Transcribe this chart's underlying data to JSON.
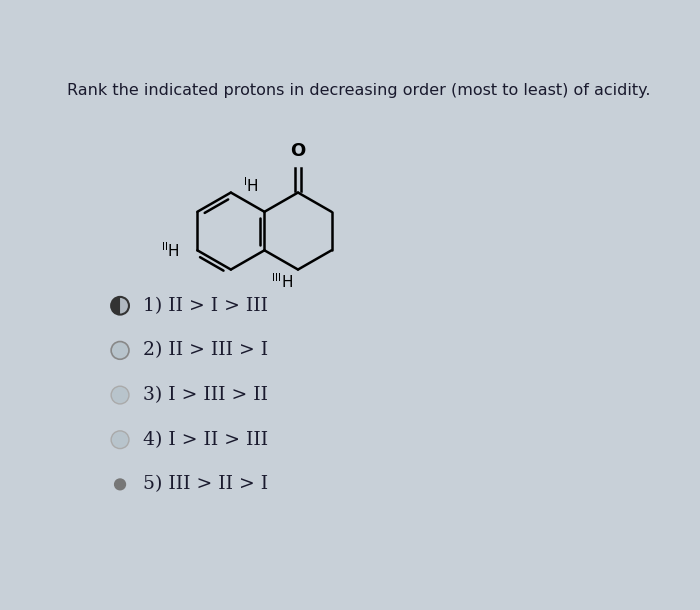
{
  "title": "Rank the indicated protons in decreasing order (most to least) of acidity.",
  "title_fontsize": 11.5,
  "bg_color": "#c8d0d8",
  "options": [
    "1) II > I > III",
    "2) II > III > I",
    "3) I > III > II",
    "4) I > II > III",
    "5) III > II > I"
  ],
  "text_color": "#1a1a2e",
  "option_fontsize": 13.5,
  "radio_sizes": [
    0.11,
    0.11,
    0.11,
    0.11,
    0.07
  ],
  "radio_edge_colors": [
    "#444444",
    "#888888",
    "#aaaaaa",
    "#aaaaaa",
    "#666666"
  ],
  "radio_face_colors": [
    "none",
    "none",
    "none",
    "none",
    "#666666"
  ],
  "radio_linewidths": [
    1.5,
    1.2,
    1.0,
    1.0,
    1.0
  ]
}
